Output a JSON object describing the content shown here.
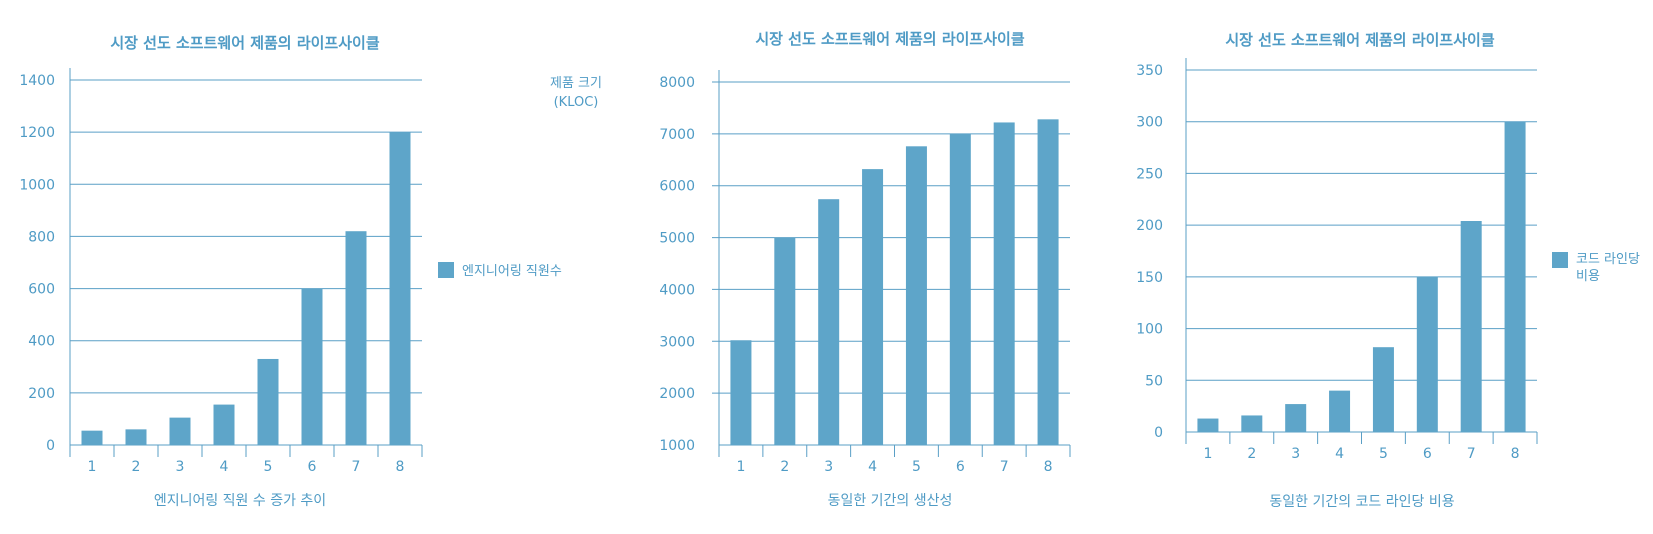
{
  "colors": {
    "bar": "#5ea5c9",
    "text": "#4f9bc5",
    "grid": "#5a9fc6"
  },
  "chart_data": [
    {
      "type": "bar",
      "title": "시장 선도 소프트웨어 제품의 라이프사이클",
      "categories": [
        "1",
        "2",
        "3",
        "4",
        "5",
        "6",
        "7",
        "8"
      ],
      "series": [
        {
          "name": "엔지니어링 직원수",
          "values": [
            55,
            60,
            105,
            155,
            330,
            600,
            820,
            1200
          ]
        }
      ],
      "xlabel": "엔지니어링 직원 수 증가 추이",
      "ylabel": "",
      "ylim": [
        0,
        1400
      ],
      "yticks": [
        "0",
        "200",
        "400",
        "600",
        "800",
        "1000",
        "1200",
        "1400"
      ],
      "grid": true,
      "legend": "right"
    },
    {
      "type": "bar",
      "title": "시장 선도 소프트웨어 제품의 라이프사이클",
      "categories": [
        "1",
        "2",
        "3",
        "4",
        "5",
        "6",
        "7",
        "8"
      ],
      "series": [
        {
          "values": [
            3020,
            5000,
            5740,
            6320,
            6760,
            7000,
            7220,
            7280
          ]
        }
      ],
      "xlabel": "동일한 기간의 생산성",
      "ylabel": [
        "제품 크기",
        "(KLOC)"
      ],
      "ylim": [
        1000,
        8000
      ],
      "yticks": [
        "1000",
        "2000",
        "3000",
        "4000",
        "5000",
        "6000",
        "7000",
        "8000"
      ],
      "grid": true
    },
    {
      "type": "bar",
      "title": "시장 선도 소프트웨어 제품의 라이프사이클",
      "categories": [
        "1",
        "2",
        "3",
        "4",
        "5",
        "6",
        "7",
        "8"
      ],
      "series": [
        {
          "name": "코드 라인당 비용",
          "values": [
            13,
            16,
            27,
            40,
            82,
            150,
            204,
            300
          ]
        }
      ],
      "legend_lines": [
        "코드 라인당",
        "비용"
      ],
      "xlabel": "동일한 기간의 코드 라인당 비용",
      "ylabel": "",
      "ylim": [
        0,
        350
      ],
      "yticks": [
        "0",
        "50",
        "100",
        "150",
        "200",
        "250",
        "300",
        "350"
      ],
      "grid": true,
      "legend": "right"
    }
  ]
}
